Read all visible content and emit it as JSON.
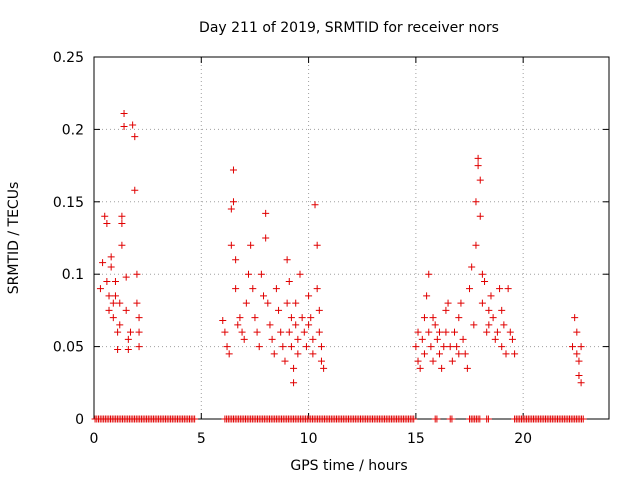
{
  "chart_data": {
    "type": "scatter",
    "title": "Day 211 of 2019, SRMTID for receiver nors",
    "xlabel": "GPS time / hours",
    "ylabel": "SRMTID / TECUs",
    "xlim": [
      0,
      24
    ],
    "ylim": [
      0,
      0.25
    ],
    "xticks": [
      0,
      5,
      10,
      15,
      20
    ],
    "yticks": [
      0,
      0.05,
      0.1,
      0.15,
      0.2,
      0.25
    ],
    "xtick_labels": [
      "0",
      "5",
      "10",
      "15",
      "20"
    ],
    "ytick_labels": [
      "0",
      "0.05",
      "0.1",
      "0.15",
      "0.2",
      "0.25"
    ],
    "grid": true,
    "marker": "+",
    "color": "#e00000",
    "series": [
      {
        "name": "SRMTID",
        "x": [
          0.3,
          0.4,
          0.5,
          0.6,
          0.6,
          0.7,
          0.7,
          0.8,
          0.8,
          0.9,
          0.9,
          1.0,
          1.0,
          1.1,
          1.1,
          1.2,
          1.2,
          1.3,
          1.3,
          1.3,
          1.4,
          1.4,
          1.5,
          1.5,
          1.6,
          1.6,
          1.7,
          1.8,
          1.9,
          1.9,
          2.0,
          2.0,
          2.1,
          2.1,
          2.1,
          6.0,
          6.1,
          6.2,
          6.3,
          6.4,
          6.4,
          6.5,
          6.5,
          6.6,
          6.6,
          6.7,
          6.8,
          6.9,
          7.0,
          7.1,
          7.2,
          7.3,
          7.4,
          7.5,
          7.6,
          7.7,
          7.8,
          7.9,
          8.0,
          8.0,
          8.1,
          8.2,
          8.3,
          8.4,
          8.5,
          8.6,
          8.7,
          8.8,
          8.9,
          9.0,
          9.0,
          9.1,
          9.1,
          9.2,
          9.2,
          9.3,
          9.3,
          9.4,
          9.4,
          9.5,
          9.5,
          9.6,
          9.7,
          9.8,
          9.9,
          10.0,
          10.0,
          10.1,
          10.2,
          10.2,
          10.3,
          10.4,
          10.4,
          10.5,
          10.5,
          10.6,
          10.6,
          10.7,
          15.0,
          15.1,
          15.1,
          15.2,
          15.3,
          15.4,
          15.4,
          15.5,
          15.6,
          15.6,
          15.7,
          15.8,
          15.8,
          15.9,
          16.0,
          16.1,
          16.1,
          16.2,
          16.3,
          16.4,
          16.4,
          16.5,
          16.6,
          16.7,
          16.8,
          16.9,
          17.0,
          17.0,
          17.1,
          17.2,
          17.3,
          17.4,
          17.5,
          17.6,
          17.7,
          17.8,
          17.8,
          17.9,
          17.9,
          18.0,
          18.0,
          18.1,
          18.1,
          18.2,
          18.3,
          18.4,
          18.4,
          18.5,
          18.6,
          18.7,
          18.8,
          18.9,
          19.0,
          19.0,
          19.1,
          19.2,
          19.3,
          19.4,
          19.5,
          19.6,
          22.3,
          22.4,
          22.5,
          22.5,
          22.6,
          22.6,
          22.7,
          22.7
        ],
        "y": [
          0.09,
          0.108,
          0.14,
          0.135,
          0.095,
          0.085,
          0.075,
          0.112,
          0.105,
          0.08,
          0.07,
          0.095,
          0.085,
          0.06,
          0.048,
          0.065,
          0.08,
          0.12,
          0.14,
          0.135,
          0.211,
          0.202,
          0.098,
          0.075,
          0.055,
          0.048,
          0.06,
          0.203,
          0.195,
          0.158,
          0.1,
          0.08,
          0.07,
          0.06,
          0.05,
          0.068,
          0.06,
          0.05,
          0.045,
          0.12,
          0.145,
          0.172,
          0.15,
          0.11,
          0.09,
          0.065,
          0.07,
          0.06,
          0.055,
          0.08,
          0.1,
          0.12,
          0.09,
          0.07,
          0.06,
          0.05,
          0.1,
          0.085,
          0.142,
          0.125,
          0.08,
          0.065,
          0.055,
          0.045,
          0.09,
          0.075,
          0.06,
          0.05,
          0.04,
          0.11,
          0.08,
          0.095,
          0.06,
          0.07,
          0.05,
          0.035,
          0.025,
          0.08,
          0.065,
          0.055,
          0.045,
          0.1,
          0.07,
          0.06,
          0.05,
          0.085,
          0.065,
          0.07,
          0.055,
          0.045,
          0.148,
          0.12,
          0.09,
          0.075,
          0.06,
          0.05,
          0.04,
          0.035,
          0.05,
          0.04,
          0.06,
          0.035,
          0.055,
          0.045,
          0.07,
          0.085,
          0.1,
          0.06,
          0.05,
          0.04,
          0.07,
          0.065,
          0.055,
          0.045,
          0.06,
          0.035,
          0.05,
          0.075,
          0.06,
          0.08,
          0.05,
          0.04,
          0.06,
          0.05,
          0.045,
          0.07,
          0.08,
          0.055,
          0.045,
          0.035,
          0.09,
          0.105,
          0.065,
          0.15,
          0.12,
          0.18,
          0.175,
          0.14,
          0.165,
          0.1,
          0.08,
          0.095,
          0.06,
          0.075,
          0.065,
          0.085,
          0.07,
          0.055,
          0.06,
          0.09,
          0.05,
          0.075,
          0.065,
          0.045,
          0.09,
          0.06,
          0.055,
          0.045,
          0.05,
          0.07,
          0.06,
          0.045,
          0.04,
          0.03,
          0.05,
          0.025
        ]
      }
    ],
    "zero_band": {
      "y": 0,
      "segments": [
        [
          0.05,
          4.7
        ],
        [
          6.1,
          14.9
        ],
        [
          15.9,
          16.0
        ],
        [
          16.6,
          16.7
        ],
        [
          17.5,
          18.0
        ],
        [
          18.3,
          18.4
        ],
        [
          19.6,
          22.8
        ]
      ]
    }
  }
}
